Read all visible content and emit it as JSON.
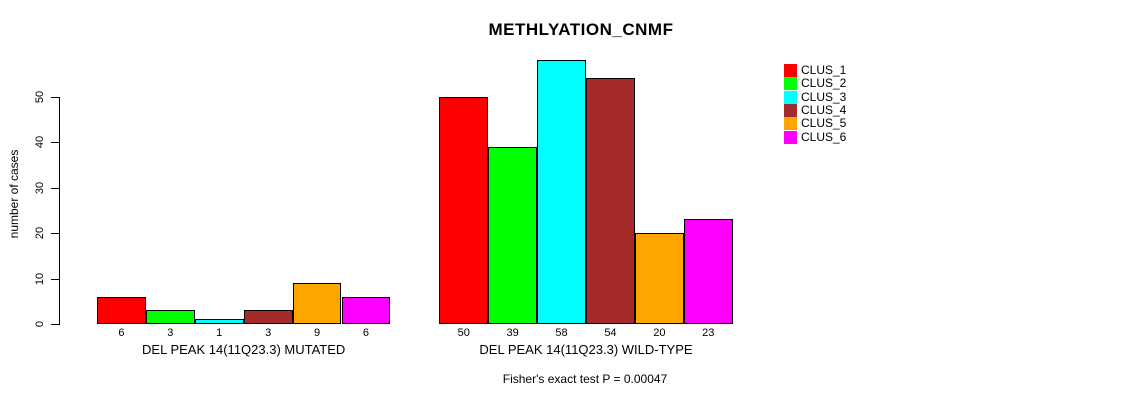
{
  "chart_data": {
    "type": "bar",
    "title": "METHLYATION_CNMF",
    "ylabel": "number of cases",
    "xlabel": "",
    "ylim": [
      0,
      50
    ],
    "yticks": [
      0,
      10,
      20,
      30,
      40,
      50
    ],
    "grid": false,
    "legend_position": "top-right",
    "series_names": [
      "CLUS_1",
      "CLUS_2",
      "CLUS_3",
      "CLUS_4",
      "CLUS_5",
      "CLUS_6"
    ],
    "colors": [
      "#FF0000",
      "#00FF00",
      "#00FFFF",
      "#A52A2A",
      "#FFA500",
      "#FF00FF"
    ],
    "groups": [
      {
        "label": "DEL PEAK 14(11Q23.3) MUTATED",
        "values": [
          6,
          3,
          1,
          3,
          9,
          6
        ]
      },
      {
        "label": "DEL PEAK 14(11Q23.3) WILD-TYPE",
        "values": [
          50,
          39,
          58,
          54,
          20,
          23
        ]
      }
    ],
    "annotation": "Fisher's exact test P = 0.00047"
  },
  "legend": {
    "items": [
      {
        "label": "CLUS_1",
        "color": "#FF0000"
      },
      {
        "label": "CLUS_2",
        "color": "#00FF00"
      },
      {
        "label": "CLUS_3",
        "color": "#00FFFF"
      },
      {
        "label": "CLUS_4",
        "color": "#A52A2A"
      },
      {
        "label": "CLUS_5",
        "color": "#FFA500"
      },
      {
        "label": "CLUS_6",
        "color": "#FF00FF"
      }
    ]
  }
}
